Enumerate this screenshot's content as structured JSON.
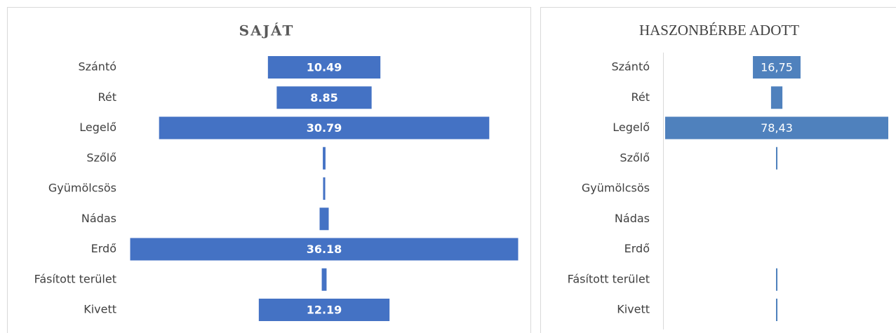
{
  "chart_data": [
    {
      "type": "funnel",
      "title": "SAJÁT",
      "categories": [
        "Szántó",
        "Rét",
        "Legelő",
        "Szőlő",
        "Gyümölcsös",
        "Nádas",
        "Erdő",
        "Fásított terület",
        "Kivett"
      ],
      "values": [
        10.49,
        8.85,
        30.79,
        0.25,
        0.2,
        0.85,
        36.18,
        0.45,
        12.19
      ],
      "value_labels": [
        "10.49",
        "8.85",
        "30.79",
        null,
        null,
        null,
        "36.18",
        null,
        "12.19"
      ],
      "color": "#4472c4"
    },
    {
      "type": "funnel",
      "title": "HASZONBÉRBE ADOTT",
      "categories": [
        "Szántó",
        "Rét",
        "Legelő",
        "Szőlő",
        "Gyümölcsös",
        "Nádas",
        "Erdő",
        "Fásított terület",
        "Kivett"
      ],
      "values": [
        16.75,
        4.0,
        78.43,
        0.5,
        0,
        0,
        0,
        0.5,
        0.5
      ],
      "value_labels": [
        "16,75",
        null,
        "78,43",
        null,
        null,
        null,
        null,
        null,
        null
      ],
      "color": "#4f81bd"
    }
  ]
}
